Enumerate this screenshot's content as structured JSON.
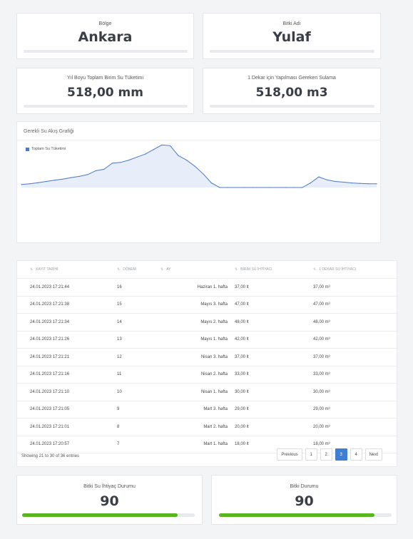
{
  "top_cards": [
    {
      "label": "Bölge",
      "value": "Ankara"
    },
    {
      "label": "Bitki Adı",
      "value": "Yulaf"
    }
  ],
  "stat_cards": [
    {
      "label": "Yıl Boyu Toplam Birim Su Tüketimi",
      "value": "518,00 mm"
    },
    {
      "label": "1 Dekar için Yapılması Gereken Sulama",
      "value": "518,00 m3"
    }
  ],
  "chart": {
    "title": "Gerekli Su Akış Grafiği",
    "legend": "Toplam Su Tüketimi",
    "colors": {
      "line": "#4a78c9",
      "fill": "#e7eef9"
    }
  },
  "chart_data": {
    "type": "area",
    "title": "Gerekli Su Akış Grafiği",
    "series": [
      {
        "name": "Toplam Su Tüketimi",
        "values": [
          2,
          2.5,
          3.2,
          4,
          4.8,
          5.5,
          6.5,
          7.3,
          8.5,
          11,
          12,
          16,
          16.5,
          18,
          20,
          22,
          25,
          28,
          27.5,
          21,
          18,
          14,
          9,
          3,
          0,
          0,
          0,
          0,
          0,
          0,
          0,
          0,
          0,
          0,
          0,
          3,
          7,
          5,
          4,
          3.5,
          3,
          2.7,
          2.5,
          2.5
        ]
      }
    ],
    "ylim": [
      0,
      30
    ],
    "grid": false,
    "legend_position": "top-left"
  },
  "table": {
    "columns": [
      "KAYIT TARİHİ",
      "DÖNEM",
      "AY",
      "BİRİM SU İHTİYACI",
      "1 DEKAR SU İHTİYACI"
    ],
    "rows": [
      [
        "24.01.2023 17:21:44",
        "16",
        "Haziran 1. hafta",
        "37,00 lt",
        "37,00 m³"
      ],
      [
        "24.01.2023 17:21:38",
        "15",
        "Mayıs 3. hafta",
        "47,00 lt",
        "47,00 m³"
      ],
      [
        "24.01.2023 17:21:34",
        "14",
        "Mayıs 2. hafta",
        "48,00 lt",
        "48,00 m³"
      ],
      [
        "24.01.2023 17:21:26",
        "13",
        "Mayıs 1. hafta",
        "42,00 lt",
        "42,00 m³"
      ],
      [
        "24.01.2023 17:21:21",
        "12",
        "Nisan 3. hafta",
        "37,00 lt",
        "37,00 m³"
      ],
      [
        "24.01.2023 17:21:16",
        "11",
        "Nisan 2. hafta",
        "33,00 lt",
        "33,00 m³"
      ],
      [
        "24.01.2023 17:21:10",
        "10",
        "Nisan 1. hafta",
        "30,00 lt",
        "30,00 m³"
      ],
      [
        "24.01.2023 17:21:05",
        "9",
        "Mart 3. hafta",
        "29,00 lt",
        "29,00 m³"
      ],
      [
        "24.01.2023 17:21:01",
        "8",
        "Mart 2. hafta",
        "20,00 lt",
        "20,00 m³"
      ],
      [
        "24.01.2023 17:20:57",
        "7",
        "Mart 1. hafta",
        "18,00 lt",
        "18,00 m³"
      ]
    ],
    "showing": "Showing 21 to 30 of 36 entries",
    "pagination": {
      "previous": "Previous",
      "pages": [
        "1",
        "2",
        "3",
        "4"
      ],
      "active": "3",
      "next": "Next"
    }
  },
  "status_cards": [
    {
      "label": "Bitki Su İhtiyaç Durumu",
      "value": "90",
      "progress": 0.9
    },
    {
      "label": "Bitki Durumu",
      "value": "90",
      "progress": 0.9
    }
  ],
  "colors": {
    "accent": "#3f7fd1",
    "progress": "#59b520"
  }
}
